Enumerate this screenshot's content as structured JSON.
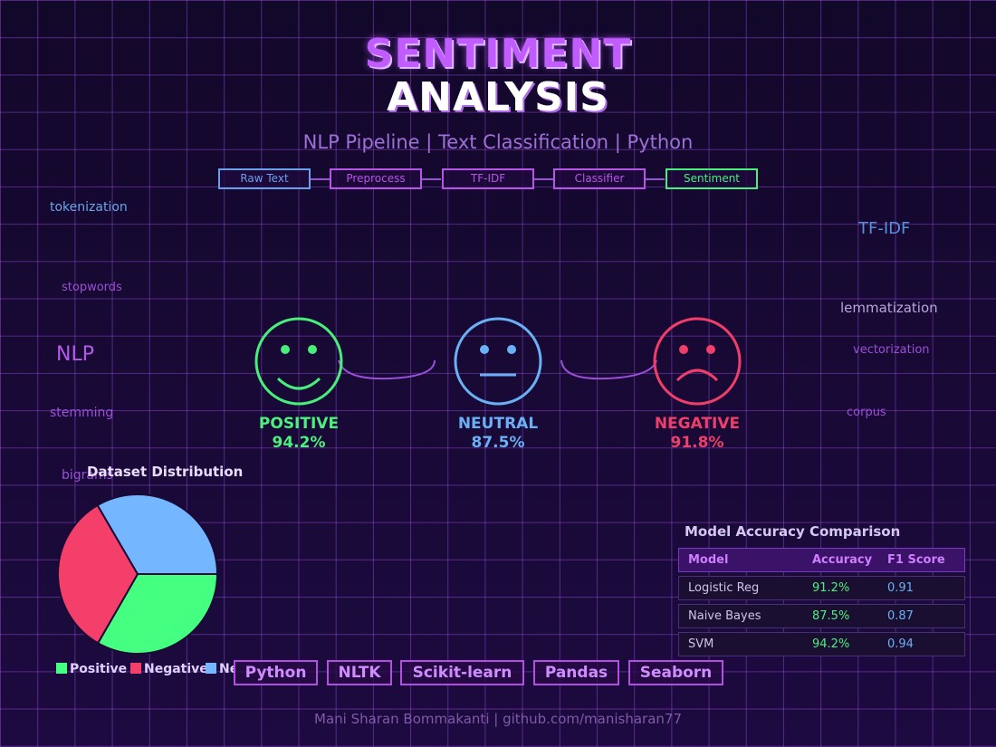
{
  "title": {
    "line1": "SENTIMENT",
    "line2": "ANALYSIS"
  },
  "subtitle": "NLP Pipeline | Text Classification | Python",
  "pipeline": [
    {
      "label": "Raw Text",
      "color": "#6aa0ea"
    },
    {
      "label": "Preprocess",
      "color": "#b855e6"
    },
    {
      "label": "TF-IDF",
      "color": "#b855e6"
    },
    {
      "label": "Classifier",
      "color": "#b855e6"
    },
    {
      "label": "Sentiment",
      "color": "#48f07a"
    }
  ],
  "floating_words": {
    "tokenization": "tokenization",
    "stopwords": "stopwords",
    "nlp": "NLP",
    "stemming": "stemming",
    "bigrams": "bigrams",
    "tfidf": "TF-IDF",
    "lemmatization": "lemmatization",
    "vectorization": "vectorization",
    "corpus": "corpus"
  },
  "sentiments": [
    {
      "label": "POSITIVE",
      "value": "94.2%",
      "color": "#4cf07c",
      "icon": "smile-face-icon"
    },
    {
      "label": "NEUTRAL",
      "value": "87.5%",
      "color": "#6ab0f5",
      "icon": "neutral-face-icon"
    },
    {
      "label": "NEGATIVE",
      "value": "91.8%",
      "color": "#f03e6a",
      "icon": "sad-face-icon"
    }
  ],
  "chart_data": {
    "type": "pie",
    "title": "Dataset Distribution",
    "categories": [
      "Positive",
      "Negative",
      "Neutral"
    ],
    "values": [
      33.3,
      33.3,
      33.4
    ],
    "colors": [
      "#45ff80",
      "#f43f6b",
      "#74b6ff"
    ],
    "legend_labels": [
      "Positive",
      "Negative",
      "Ne"
    ]
  },
  "tech_stack": [
    "Python",
    "NLTK",
    "Scikit-learn",
    "Pandas",
    "Seaborn"
  ],
  "accuracy_table": {
    "title": "Model Accuracy Comparison",
    "headers": {
      "model": "Model",
      "accuracy": "Accuracy",
      "f1": "F1 Score"
    },
    "rows": [
      {
        "model": "Logistic Reg",
        "accuracy": "91.2%",
        "f1": "0.91"
      },
      {
        "model": "Naive Bayes",
        "accuracy": "87.5%",
        "f1": "0.87"
      },
      {
        "model": "SVM",
        "accuracy": "94.2%",
        "f1": "0.94"
      }
    ]
  },
  "footer": "Mani Sharan Bommakanti  |  github.com/manisharan77"
}
